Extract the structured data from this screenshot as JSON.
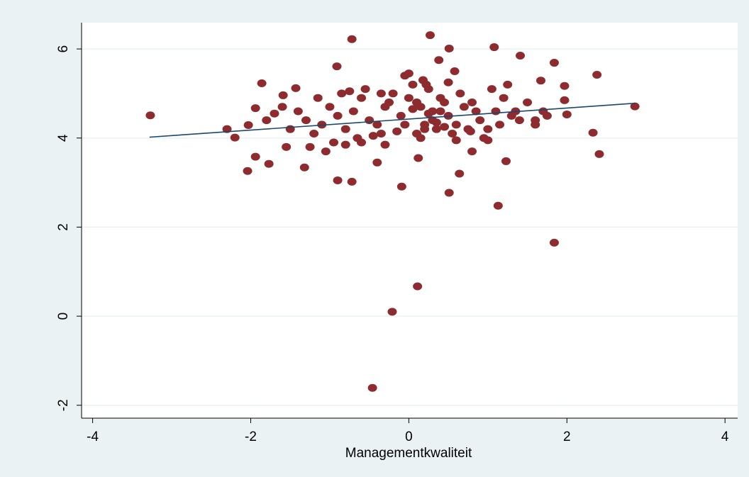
{
  "chart_data": {
    "type": "scatter",
    "x_label": "Managementkwaliteit",
    "xlim": [
      -4.14,
      4.16
    ],
    "ylim": [
      -2.29,
      6.59
    ],
    "xticks": [
      -4,
      -2,
      0,
      2,
      4
    ],
    "yticks": [
      -2,
      0,
      2,
      4,
      6
    ],
    "grid": true,
    "color": "#8e2b2e",
    "fit_color": "#1a476f",
    "fit": {
      "x": [
        -3.28,
        2.86
      ],
      "y": [
        4.02,
        4.78
      ]
    },
    "x": [
      -3.27,
      -0.72,
      0.27,
      1.08,
      1.41,
      -0.91,
      1.84,
      2.38,
      -1.86,
      0.51,
      1.13,
      1.84,
      0.11,
      -0.21,
      -0.46,
      -0.09,
      0.51,
      -0.9,
      -0.72,
      -2.04,
      -1.77,
      -1.32,
      2.41,
      2.33,
      2.86,
      2.0,
      1.97,
      1.97,
      1.67,
      -1.94,
      -2.2,
      -2.3,
      -2.03,
      -1.94,
      -1.7,
      -1.59,
      -1.43,
      1.23,
      0.64,
      0.12,
      -0.4,
      -1.5,
      -1.3,
      -1.1,
      -0.9,
      -0.7,
      -0.5,
      -0.3,
      -0.1,
      0.1,
      0.3,
      0.5,
      0.7,
      0.9,
      1.1,
      1.3,
      1.5,
      1.7,
      -1.4,
      -1.2,
      -1.0,
      -0.8,
      -0.6,
      -0.4,
      -0.2,
      0.0,
      0.2,
      0.4,
      0.6,
      0.8,
      1.0,
      1.2,
      1.4,
      1.6,
      -1.6,
      -1.25,
      -0.95,
      -0.65,
      -0.35,
      -0.05,
      0.15,
      0.35,
      0.55,
      0.75,
      0.95,
      1.15,
      1.35,
      -1.15,
      -0.85,
      -0.55,
      -0.25,
      0.05,
      0.25,
      0.45,
      0.65,
      0.85,
      1.05,
      -0.45,
      -0.15,
      0.1,
      0.2,
      0.3,
      0.4,
      0.05,
      0.15,
      0.25,
      0.35,
      0.45,
      -0.3,
      -0.6,
      0.6,
      0.8,
      1.0,
      -0.8,
      -1.05,
      -0.75,
      -0.35,
      0.0,
      0.18,
      0.38,
      0.58,
      0.78,
      1.25,
      1.6,
      1.75,
      -1.8,
      -1.55,
      -0.05,
      0.22,
      0.5
    ],
    "y": [
      4.51,
      6.22,
      6.31,
      6.04,
      5.85,
      5.61,
      5.69,
      5.42,
      5.23,
      6.01,
      2.48,
      1.65,
      0.67,
      0.1,
      -1.61,
      2.91,
      2.77,
      3.05,
      3.02,
      3.26,
      3.42,
      3.34,
      3.64,
      4.12,
      4.71,
      4.53,
      4.85,
      5.17,
      5.29,
      3.58,
      4.01,
      4.2,
      4.29,
      4.67,
      4.55,
      4.96,
      5.12,
      3.48,
      3.2,
      3.55,
      3.45,
      4.2,
      4.4,
      4.3,
      4.5,
      4.6,
      4.4,
      4.7,
      4.5,
      4.8,
      4.6,
      4.5,
      4.7,
      4.4,
      4.6,
      4.5,
      4.8,
      4.6,
      4.6,
      4.1,
      4.7,
      4.2,
      4.9,
      4.3,
      5.0,
      4.9,
      4.2,
      4.9,
      4.3,
      4.8,
      4.2,
      4.9,
      4.4,
      4.4,
      4.7,
      3.8,
      3.9,
      4.0,
      4.1,
      4.3,
      4.0,
      4.2,
      4.1,
      4.2,
      4.0,
      4.3,
      4.6,
      4.9,
      5.0,
      5.1,
      4.8,
      5.2,
      5.1,
      4.8,
      5.0,
      4.6,
      5.1,
      4.05,
      4.15,
      4.1,
      4.3,
      4.4,
      4.6,
      4.65,
      4.7,
      4.55,
      4.35,
      4.25,
      3.85,
      3.9,
      3.95,
      3.7,
      3.95,
      3.85,
      3.7,
      5.05,
      5.0,
      5.45,
      5.3,
      5.75,
      5.5,
      4.15,
      5.2,
      4.3,
      4.5,
      4.4,
      3.8,
      5.4,
      5.2,
      5.25
    ]
  }
}
